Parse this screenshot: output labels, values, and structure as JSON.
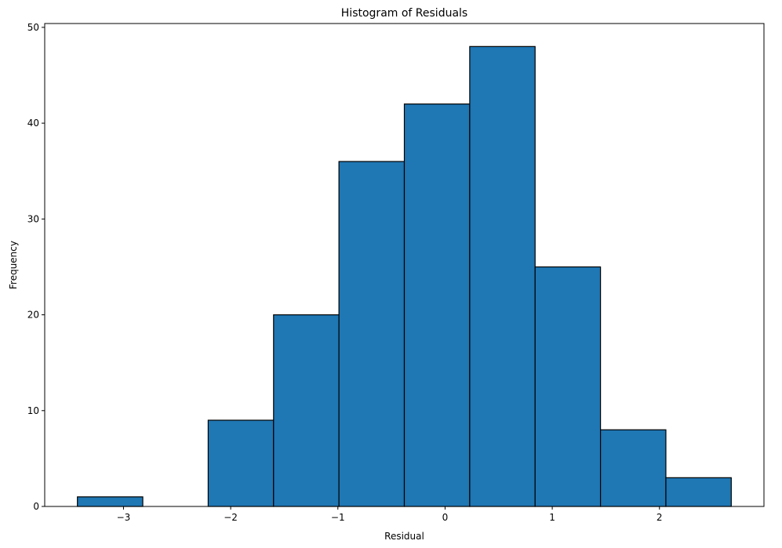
{
  "chart_data": {
    "type": "bar",
    "title": "Histogram of Residuals",
    "xlabel": "Residual",
    "ylabel": "Frequency",
    "bins": [
      {
        "x0": -3.43,
        "x1": -2.82,
        "count": 1
      },
      {
        "x0": -2.82,
        "x1": -2.21,
        "count": 0
      },
      {
        "x0": -2.21,
        "x1": -1.6,
        "count": 9
      },
      {
        "x0": -1.6,
        "x1": -0.99,
        "count": 20
      },
      {
        "x0": -0.99,
        "x1": -0.38,
        "count": 36
      },
      {
        "x0": -0.38,
        "x1": 0.23,
        "count": 42
      },
      {
        "x0": 0.23,
        "x1": 0.84,
        "count": 48
      },
      {
        "x0": 0.84,
        "x1": 1.45,
        "count": 25
      },
      {
        "x0": 1.45,
        "x1": 2.06,
        "count": 8
      },
      {
        "x0": 2.06,
        "x1": 2.67,
        "count": 3
      }
    ],
    "xlim": [
      -3.735,
      2.975
    ],
    "ylim": [
      0,
      50.4
    ],
    "xticks": [
      -3,
      -2,
      -1,
      0,
      1,
      2
    ],
    "xtick_labels": [
      "−3",
      "−2",
      "−1",
      "0",
      "1",
      "2"
    ],
    "yticks": [
      0,
      10,
      20,
      30,
      40,
      50
    ],
    "ytick_labels": [
      "0",
      "10",
      "20",
      "30",
      "40",
      "50"
    ],
    "bar_color": "#1f77b4",
    "edge_color": "#000000",
    "grid": false
  }
}
